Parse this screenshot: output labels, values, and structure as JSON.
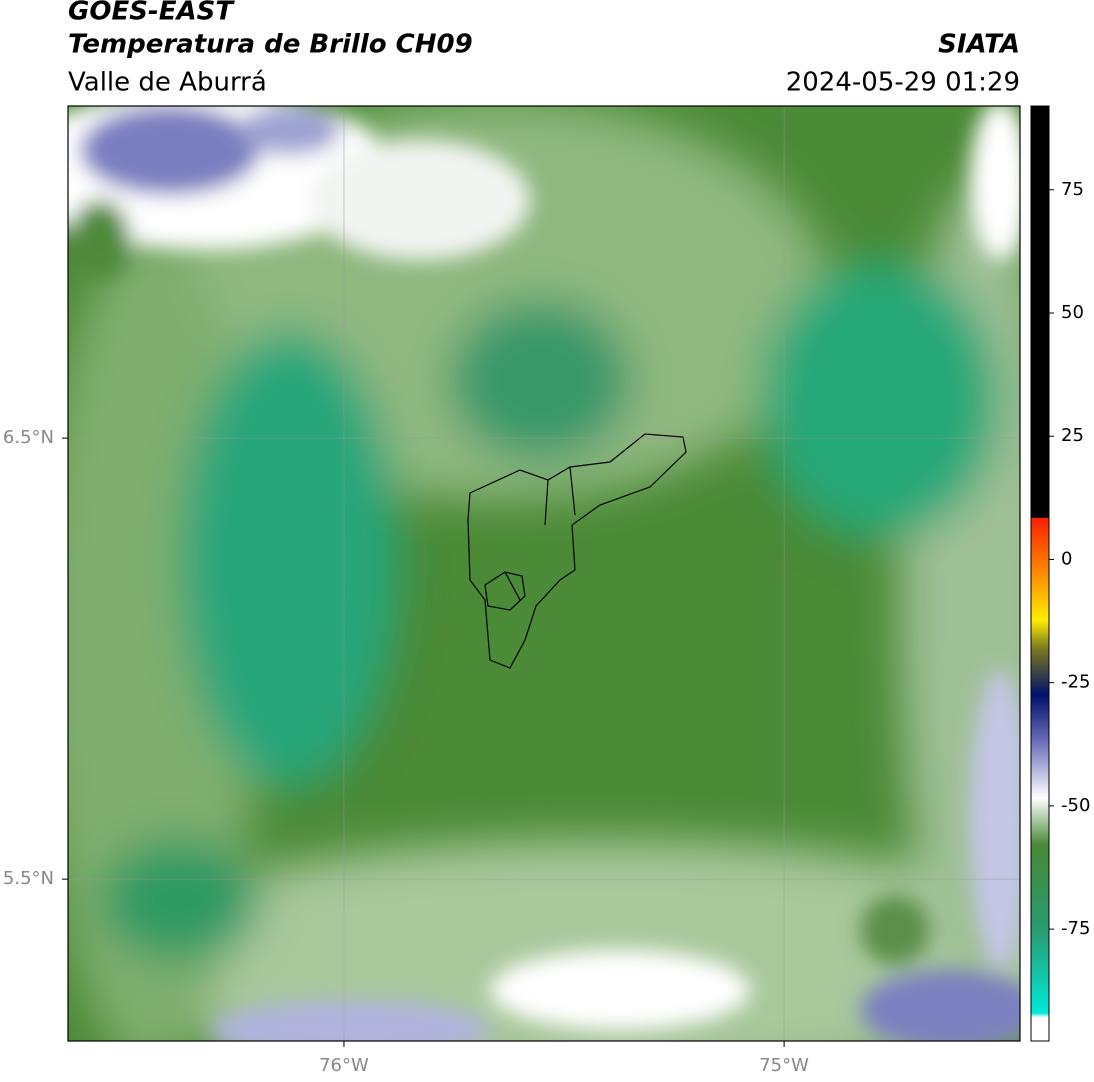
{
  "header": {
    "title": "GOES-EAST",
    "subtitle": "Temperatura de Brillo CH09",
    "region": "Valle de Aburrá",
    "source": "SIATA",
    "timestamp": "2024-05-29 01:29"
  },
  "map": {
    "xlim": [
      -76.627,
      -74.464
    ],
    "ylim": [
      5.133,
      7.253
    ],
    "xticks": [
      {
        "value": -76,
        "label": "76°W"
      },
      {
        "value": -75,
        "label": "75°W"
      }
    ],
    "yticks": [
      {
        "value": 6.5,
        "label": "6.5°N"
      },
      {
        "value": 5.5,
        "label": "5.5°N"
      }
    ],
    "grid": true
  },
  "colorbar": {
    "lim": [
      -97.7,
      92
    ],
    "ticks": [
      75,
      50,
      25,
      0,
      -25,
      -50,
      -75
    ]
  }
}
